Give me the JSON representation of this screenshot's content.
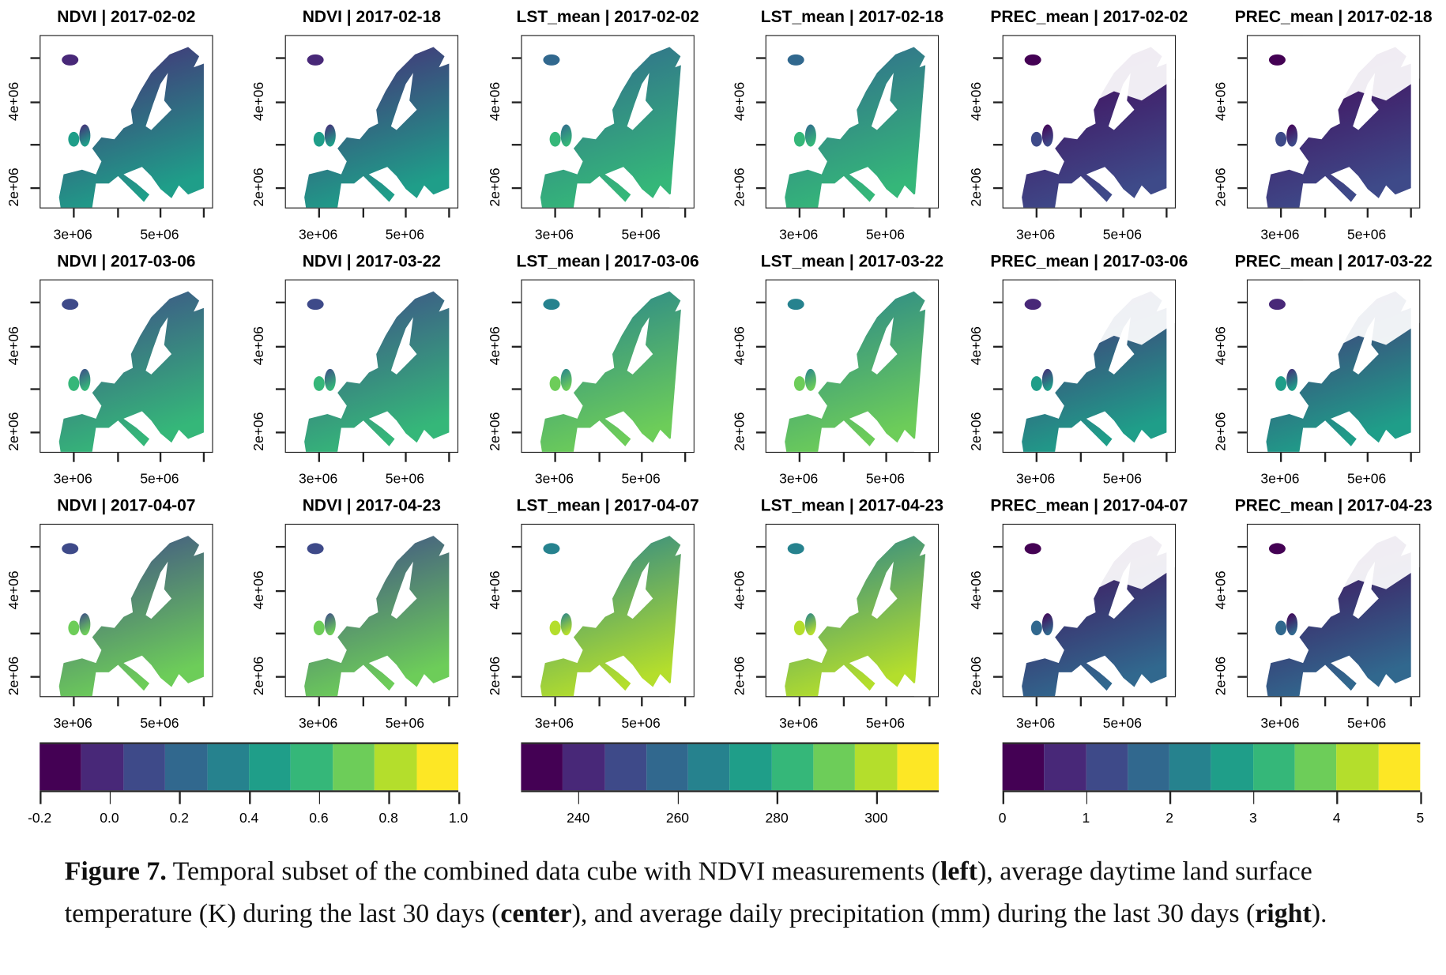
{
  "figure": {
    "panels": [
      {
        "title": "NDVI | 2017-02-02",
        "variable": "NDVI"
      },
      {
        "title": "NDVI | 2017-02-18",
        "variable": "NDVI"
      },
      {
        "title": "LST_mean | 2017-02-02",
        "variable": "LST_mean"
      },
      {
        "title": "LST_mean | 2017-02-18",
        "variable": "LST_mean"
      },
      {
        "title": "PREC_mean | 2017-02-02",
        "variable": "PREC_mean"
      },
      {
        "title": "PREC_mean | 2017-02-18",
        "variable": "PREC_mean"
      },
      {
        "title": "NDVI | 2017-03-06",
        "variable": "NDVI"
      },
      {
        "title": "NDVI | 2017-03-22",
        "variable": "NDVI"
      },
      {
        "title": "LST_mean | 2017-03-06",
        "variable": "LST_mean"
      },
      {
        "title": "LST_mean | 2017-03-22",
        "variable": "LST_mean"
      },
      {
        "title": "PREC_mean | 2017-03-06",
        "variable": "PREC_mean"
      },
      {
        "title": "PREC_mean | 2017-03-22",
        "variable": "PREC_mean"
      },
      {
        "title": "NDVI | 2017-04-07",
        "variable": "NDVI"
      },
      {
        "title": "NDVI | 2017-04-23",
        "variable": "NDVI"
      },
      {
        "title": "LST_mean | 2017-04-07",
        "variable": "LST_mean"
      },
      {
        "title": "LST_mean | 2017-04-23",
        "variable": "LST_mean"
      },
      {
        "title": "PREC_mean | 2017-04-07",
        "variable": "PREC_mean"
      },
      {
        "title": "PREC_mean | 2017-04-23",
        "variable": "PREC_mean"
      }
    ],
    "x_tick_labels": [
      "3e+06",
      "5e+06"
    ],
    "y_tick_labels": [
      "4e+06",
      "2e+06"
    ],
    "palette": [
      "#440154",
      "#482878",
      "#3E4A89",
      "#31688E",
      "#26828E",
      "#1F9E89",
      "#35B779",
      "#6DCD59",
      "#B4DE2C",
      "#FDE725"
    ],
    "colorbars": [
      {
        "variable": "NDVI",
        "range": [
          -0.2,
          1.0
        ],
        "ticks": [
          "-0.2",
          "0.0",
          "0.2",
          "0.4",
          "0.6",
          "0.8",
          "1.0"
        ],
        "tick_values": [
          -0.2,
          0.0,
          0.2,
          0.4,
          0.6,
          0.8,
          1.0
        ]
      },
      {
        "variable": "LST_mean",
        "range": [
          228.5,
          312.6
        ],
        "ticks": [
          "240",
          "260",
          "280",
          "300"
        ],
        "tick_values": [
          240,
          260,
          280,
          300
        ]
      },
      {
        "variable": "PREC_mean",
        "range": [
          0,
          5
        ],
        "ticks": [
          "0",
          "1",
          "2",
          "3",
          "4",
          "5"
        ],
        "tick_values": [
          0,
          1,
          2,
          3,
          4,
          5
        ]
      }
    ]
  },
  "caption": {
    "label": "Figure 7.",
    "t1": " Temporal subset of the combined data cube with NDVI measurements (",
    "b1": "left",
    "t2": "), average daytime land surface temperature (K) during the last 30 days (",
    "b2": "center",
    "t3": "), and average daily precipitation (mm) during the last 30 days (",
    "b3": "right",
    "t4": ")."
  }
}
